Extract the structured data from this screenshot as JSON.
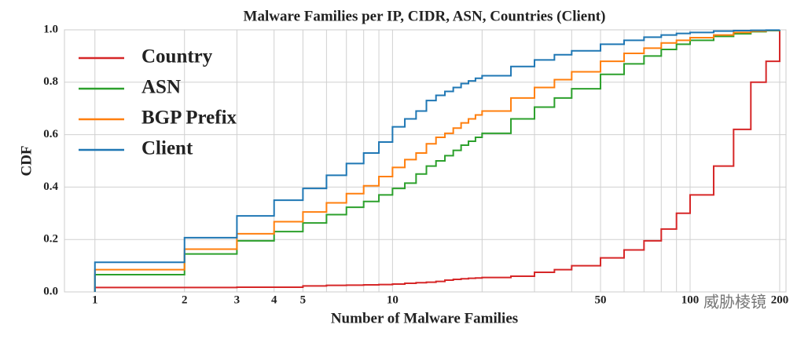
{
  "chart_data": {
    "type": "line",
    "step": true,
    "title": "Malware Families per IP, CIDR, ASN, Countries (Client)",
    "xlabel": "Number of Malware Families",
    "ylabel": "CDF",
    "watermark": "威胁棱镜",
    "xscale": "log",
    "xlim": [
      0.79,
      210
    ],
    "ylim": [
      0,
      1
    ],
    "xticks": [
      1,
      2,
      3,
      4,
      5,
      10,
      50,
      100,
      200
    ],
    "xgrid_minor": [
      6,
      7,
      8,
      9,
      20,
      30,
      40,
      60,
      70,
      80,
      90
    ],
    "yticks": [
      {
        "value": 0,
        "label": "0.0"
      },
      {
        "value": 0.2,
        "label": "0.2"
      },
      {
        "value": 0.4,
        "label": "0.4"
      },
      {
        "value": 0.6,
        "label": "0.6"
      },
      {
        "value": 0.8,
        "label": "0.8"
      },
      {
        "value": 1,
        "label": "1.0"
      }
    ],
    "grid": true,
    "legend": "upper left",
    "x": [
      1,
      2,
      3,
      4,
      5,
      6,
      7,
      8,
      9,
      10,
      11,
      12,
      13,
      14,
      15,
      16,
      17,
      18,
      19,
      20,
      25,
      30,
      35,
      40,
      50,
      60,
      70,
      80,
      90,
      100,
      120,
      140,
      160,
      180,
      200
    ],
    "series": [
      {
        "name": "Country",
        "color": "#d62728",
        "values": [
          0.017,
          0.017,
          0.018,
          0.018,
          0.023,
          0.025,
          0.026,
          0.027,
          0.028,
          0.03,
          0.033,
          0.035,
          0.037,
          0.04,
          0.045,
          0.048,
          0.05,
          0.052,
          0.053,
          0.055,
          0.06,
          0.075,
          0.085,
          0.1,
          0.13,
          0.16,
          0.195,
          0.24,
          0.3,
          0.37,
          0.48,
          0.62,
          0.8,
          0.88,
          1.0
        ]
      },
      {
        "name": "ASN",
        "color": "#2ca02c",
        "values": [
          0.066,
          0.145,
          0.195,
          0.23,
          0.263,
          0.295,
          0.323,
          0.345,
          0.37,
          0.395,
          0.415,
          0.45,
          0.48,
          0.5,
          0.52,
          0.54,
          0.56,
          0.575,
          0.59,
          0.605,
          0.66,
          0.705,
          0.74,
          0.775,
          0.83,
          0.87,
          0.9,
          0.925,
          0.945,
          0.96,
          0.975,
          0.985,
          0.993,
          0.997,
          1.0
        ]
      },
      {
        "name": "BGP Prefix",
        "color": "#ff7f0e",
        "values": [
          0.085,
          0.163,
          0.222,
          0.268,
          0.305,
          0.34,
          0.375,
          0.405,
          0.44,
          0.475,
          0.505,
          0.53,
          0.565,
          0.59,
          0.605,
          0.625,
          0.645,
          0.66,
          0.675,
          0.69,
          0.74,
          0.78,
          0.81,
          0.84,
          0.88,
          0.91,
          0.93,
          0.95,
          0.96,
          0.97,
          0.98,
          0.99,
          0.995,
          0.998,
          1.0
        ]
      },
      {
        "name": "Client",
        "color": "#1f77b4",
        "values": [
          0.113,
          0.207,
          0.29,
          0.35,
          0.395,
          0.445,
          0.49,
          0.53,
          0.572,
          0.63,
          0.66,
          0.69,
          0.73,
          0.75,
          0.765,
          0.78,
          0.795,
          0.805,
          0.815,
          0.825,
          0.86,
          0.885,
          0.905,
          0.92,
          0.945,
          0.96,
          0.972,
          0.98,
          0.986,
          0.99,
          0.995,
          0.997,
          0.998,
          0.999,
          1.0
        ]
      }
    ]
  }
}
